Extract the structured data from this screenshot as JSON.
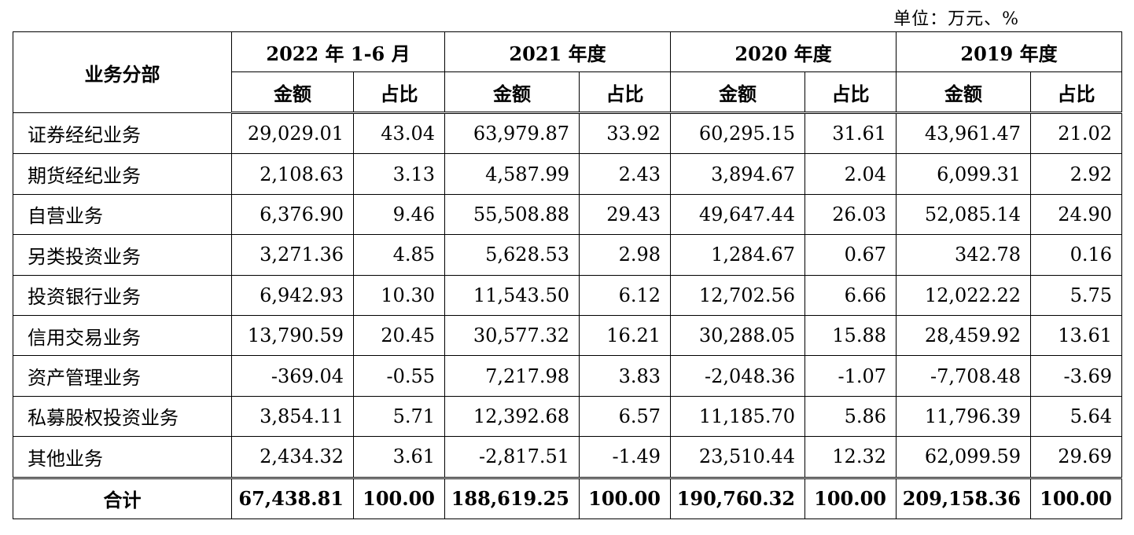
{
  "unit_label": "单位：万元、%",
  "header": {
    "dept_label": "业务分部",
    "periods": [
      "2022 年 1-6 月",
      "2021 年度",
      "2020 年度",
      "2019 年度"
    ],
    "amount_label": "金额",
    "ratio_label": "占比"
  },
  "rows": [
    {
      "name": "证券经纪业务",
      "values": [
        "29,029.01",
        "43.04",
        "63,979.87",
        "33.92",
        "60,295.15",
        "31.61",
        "43,961.47",
        "21.02"
      ]
    },
    {
      "name": "期货经纪业务",
      "values": [
        "2,108.63",
        "3.13",
        "4,587.99",
        "2.43",
        "3,894.67",
        "2.04",
        "6,099.31",
        "2.92"
      ]
    },
    {
      "name": "自营业务",
      "values": [
        "6,376.90",
        "9.46",
        "55,508.88",
        "29.43",
        "49,647.44",
        "26.03",
        "52,085.14",
        "24.90"
      ]
    },
    {
      "name": "另类投资业务",
      "values": [
        "3,271.36",
        "4.85",
        "5,628.53",
        "2.98",
        "1,284.67",
        "0.67",
        "342.78",
        "0.16"
      ]
    },
    {
      "name": "投资银行业务",
      "values": [
        "6,942.93",
        "10.30",
        "11,543.50",
        "6.12",
        "12,702.56",
        "6.66",
        "12,022.22",
        "5.75"
      ]
    },
    {
      "name": "信用交易业务",
      "values": [
        "13,790.59",
        "20.45",
        "30,577.32",
        "16.21",
        "30,288.05",
        "15.88",
        "28,459.92",
        "13.61"
      ]
    },
    {
      "name": "资产管理业务",
      "values": [
        "-369.04",
        "-0.55",
        "7,217.98",
        "3.83",
        "-2,048.36",
        "-1.07",
        "-7,708.48",
        "-3.69"
      ]
    },
    {
      "name": "私募股权投资业务",
      "values": [
        "3,854.11",
        "5.71",
        "12,392.68",
        "6.57",
        "11,185.70",
        "5.86",
        "11,796.39",
        "5.64"
      ]
    },
    {
      "name": "其他业务",
      "values": [
        "2,434.32",
        "3.61",
        "-2,817.51",
        "-1.49",
        "23,510.44",
        "12.32",
        "62,099.59",
        "29.69"
      ]
    }
  ],
  "total": {
    "name": "合计",
    "values": [
      "67,438.81",
      "100.00",
      "188,619.25",
      "100.00",
      "190,760.32",
      "100.00",
      "209,158.36",
      "100.00"
    ]
  }
}
